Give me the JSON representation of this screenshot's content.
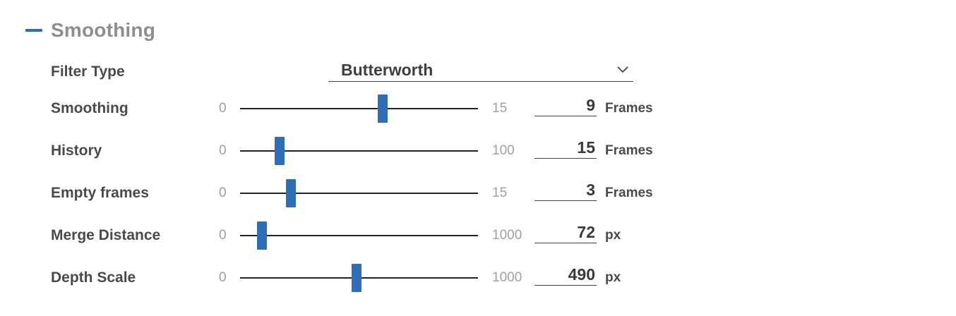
{
  "section": {
    "title": "Smoothing",
    "collapse_icon": "minus-icon",
    "accent_color": "#2f6db5"
  },
  "filter": {
    "label": "Filter Type",
    "value": "Butterworth",
    "icon": "chevron-down-icon"
  },
  "sliders": [
    {
      "label": "Smoothing",
      "min": "0",
      "max": "15",
      "value": "9",
      "unit": "Frames"
    },
    {
      "label": "History",
      "min": "0",
      "max": "100",
      "value": "15",
      "unit": "Frames"
    },
    {
      "label": "Empty frames",
      "min": "0",
      "max": "15",
      "value": "3",
      "unit": "Frames"
    },
    {
      "label": "Merge Distance",
      "min": "0",
      "max": "1000",
      "value": "72",
      "unit": "px"
    },
    {
      "label": "Depth Scale",
      "min": "0",
      "max": "1000",
      "value": "490",
      "unit": "px"
    }
  ]
}
